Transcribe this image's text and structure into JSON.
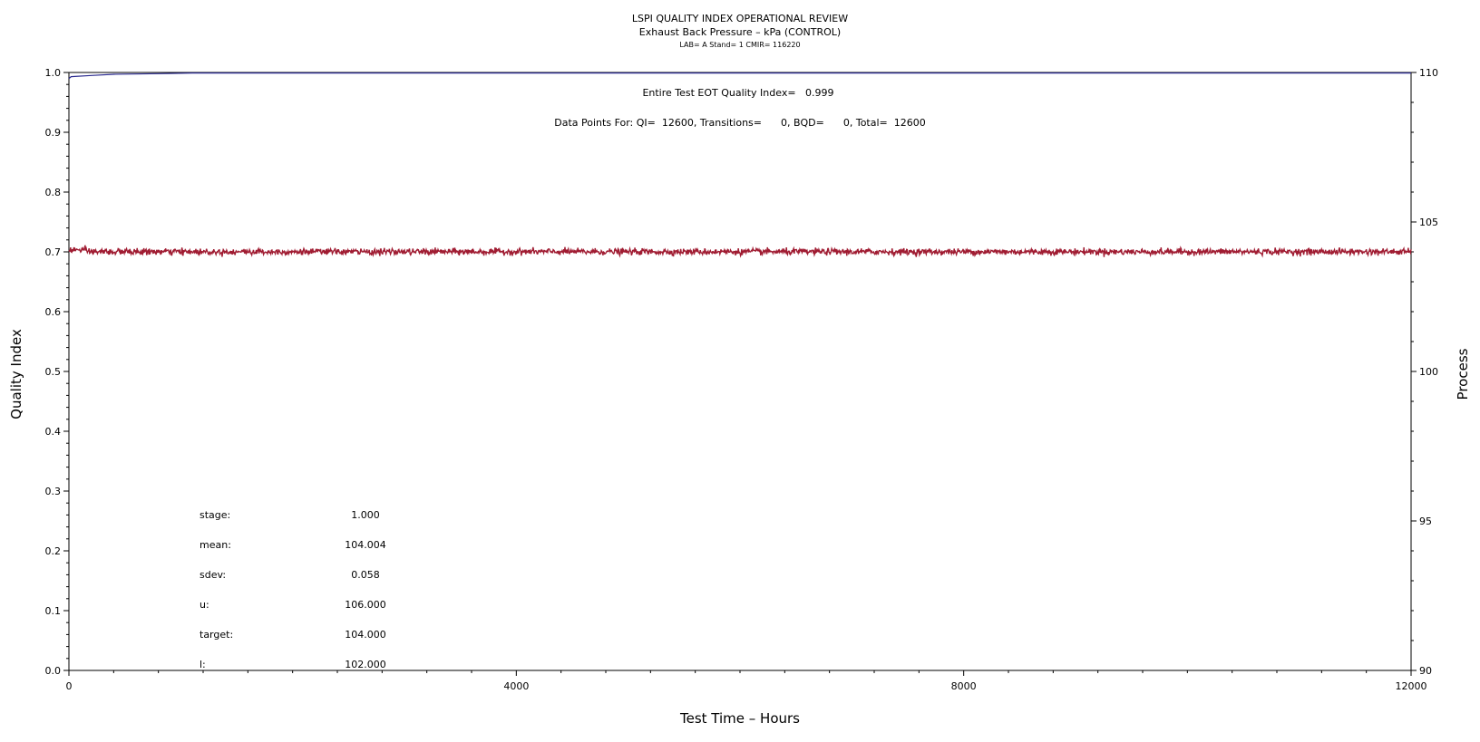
{
  "chart_data": {
    "type": "line",
    "title": "LSPI QUALITY INDEX OPERATIONAL REVIEW",
    "subtitle": "Exhaust Back Pressure – kPa (CONTROL)",
    "subtitle2": "LAB= A Stand= 1 CMIR= 116220",
    "xlabel": "Test Time – Hours",
    "ylabel_left": "Quality Index",
    "ylabel_right": "Process",
    "xlim": [
      0,
      12000
    ],
    "ylim_left": [
      0,
      1
    ],
    "ylim_right": [
      90,
      110
    ],
    "x_ticks": [
      0,
      4000,
      8000,
      12000
    ],
    "x_tick_labels": [
      "0",
      "4000",
      "8000",
      "12000"
    ],
    "y_left_ticks": [
      0,
      0.1,
      0.2,
      0.3,
      0.4,
      0.5,
      0.6,
      0.7,
      0.8,
      0.9,
      1.0
    ],
    "y_left_tick_labels": [
      "0.0",
      "0.1",
      "0.2",
      "0.3",
      "0.4",
      "0.5",
      "0.6",
      "0.7",
      "0.8",
      "0.9",
      "1.0"
    ],
    "y_right_ticks": [
      90,
      95,
      100,
      105,
      110
    ],
    "y_right_tick_labels": [
      "90",
      "95",
      "100",
      "105",
      "110"
    ],
    "info_line1": "Entire Test EOT Quality Index=   0.999",
    "info_line2": "Data Points For: QI=  12600, Transitions=      0, BQD=      0, Total=  12600",
    "stats": [
      {
        "label": "stage:",
        "value": "1.000"
      },
      {
        "label": "mean:",
        "value": "104.004"
      },
      {
        "label": "sdev:",
        "value": "0.058"
      },
      {
        "label": "u:",
        "value": "106.000"
      },
      {
        "label": "target:",
        "value": "104.000"
      },
      {
        "label": "l:",
        "value": "102.000"
      }
    ],
    "series": [
      {
        "axis": "left",
        "color": "#2b2b8f",
        "x": [
          0,
          20,
          200,
          400,
          800,
          1100,
          1200,
          2000,
          4000,
          8000,
          12000
        ],
        "values": [
          0.99,
          0.993,
          0.995,
          0.997,
          0.998,
          0.999,
          0.999,
          0.999,
          0.999,
          0.999,
          0.999
        ]
      },
      {
        "axis": "right",
        "color": "#a01c32",
        "mean": 104.004,
        "sdev": 0.058,
        "n_points": 12600
      }
    ]
  }
}
